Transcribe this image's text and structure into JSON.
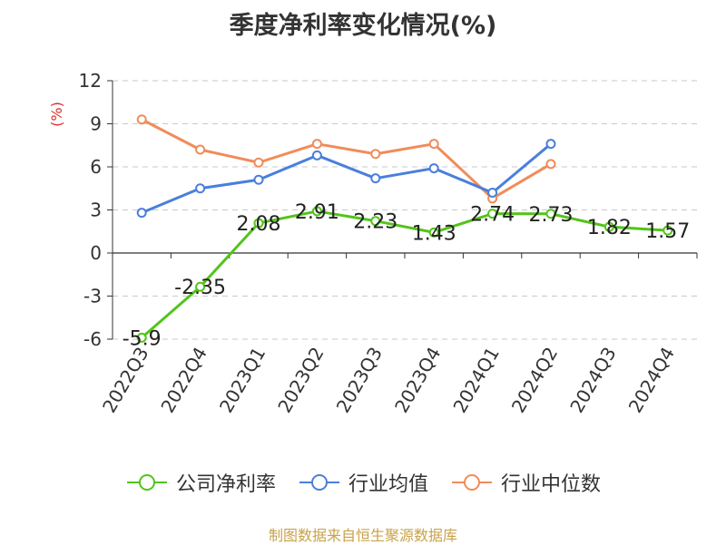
{
  "chart_data": {
    "type": "line",
    "title": "季度净利率变化情况(%)",
    "ylabel": "(%)",
    "ylim": [
      -6,
      12
    ],
    "yticks": [
      -6,
      -3,
      0,
      3,
      6,
      9,
      12
    ],
    "grid": true,
    "legend_position": "bottom",
    "categories": [
      "2022Q3",
      "2022Q4",
      "2023Q1",
      "2023Q2",
      "2023Q3",
      "2023Q4",
      "2024Q1",
      "2024Q2",
      "2024Q3",
      "2024Q4"
    ],
    "series": [
      {
        "name": "公司净利率",
        "color": "#52c41a",
        "show_labels": true,
        "values": [
          -5.9,
          -2.35,
          2.08,
          2.91,
          2.23,
          1.43,
          2.74,
          2.73,
          1.82,
          1.57
        ],
        "labels": [
          "-5.9",
          "-2.35",
          "2.08",
          "2.91",
          "2.23",
          "1.43",
          "2.74",
          "2.73",
          "1.82",
          "1.57"
        ]
      },
      {
        "name": "行业均值",
        "color": "#4a7fdc",
        "show_labels": false,
        "values": [
          2.8,
          4.5,
          5.1,
          6.8,
          5.2,
          5.9,
          4.2,
          7.6,
          null,
          null
        ]
      },
      {
        "name": "行业中位数",
        "color": "#f08c5a",
        "show_labels": false,
        "values": [
          9.3,
          7.2,
          6.3,
          7.6,
          6.9,
          7.6,
          3.8,
          6.2,
          null,
          null
        ]
      }
    ]
  },
  "footer": {
    "source": "制图数据来自恒生聚源数据库"
  }
}
